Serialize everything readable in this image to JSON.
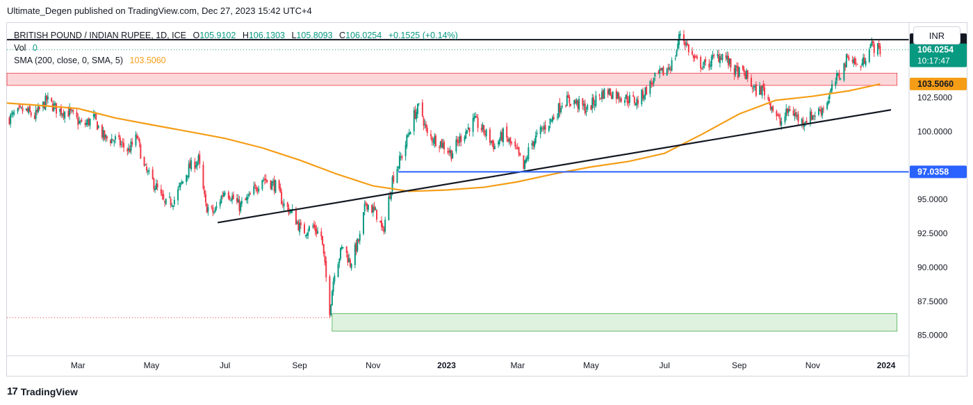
{
  "header": {
    "published": "Ultimate_Degen published on TradingView.com, Dec 27, 2023 15:42 UTC+4"
  },
  "legend": {
    "symbol": "BRITISH POUND / INDIAN RUPEE, 1D, ICE",
    "o_label": "O",
    "o": "105.9102",
    "h_label": "H",
    "h": "106.1303",
    "l_label": "L",
    "l": "105.8093",
    "c_label": "C",
    "c": "106.0254",
    "change": "+0.1525 (+0.14%)",
    "vol_label": "Vol",
    "vol": "0",
    "sma_label": "SMA (200, close, 0, SMA, 5)",
    "sma": "103.5060"
  },
  "currency_button": "INR",
  "footer": {
    "brand": "TradingView",
    "logo": "17"
  },
  "colors": {
    "up": "#089981",
    "down": "#f23645",
    "sma": "#f59d16",
    "support": "#2962ff",
    "trend": "#131722",
    "red_zone": "#f23645",
    "green_zone": "#4caf50"
  },
  "chart_data": {
    "type": "candlestick",
    "symbol": "BRITISH POUND / INDIAN RUPEE",
    "interval": "1D",
    "y_range": [
      83.5,
      108.0
    ],
    "y_ticks": [
      "85.0000",
      "87.5000",
      "90.0000",
      "92.5000",
      "95.0000",
      "100.0000",
      "102.5000"
    ],
    "x_ticks": [
      {
        "label": "Mar",
        "date": "2022-03-01"
      },
      {
        "label": "May",
        "date": "2022-05-01"
      },
      {
        "label": "Jul",
        "date": "2022-07-01"
      },
      {
        "label": "Sep",
        "date": "2022-09-01"
      },
      {
        "label": "Nov",
        "date": "2022-11-01"
      },
      {
        "label": "2023",
        "date": "2023-01-01",
        "bold": true
      },
      {
        "label": "Mar",
        "date": "2023-03-01"
      },
      {
        "label": "May",
        "date": "2023-05-01"
      },
      {
        "label": "Jul",
        "date": "2023-07-01"
      },
      {
        "label": "Sep",
        "date": "2023-09-01"
      },
      {
        "label": "Nov",
        "date": "2023-11-01"
      },
      {
        "label": "2024",
        "date": "2024-01-01",
        "bold": true
      }
    ],
    "price_labels": [
      {
        "value": 106.769,
        "text": "106.7690",
        "bg": "#131722"
      },
      {
        "value": 106.0254,
        "text": "106.0254",
        "sub": "10:17:47",
        "bg": "#089981"
      },
      {
        "value": 103.506,
        "text": "103.5060",
        "bg": "#f59d16",
        "color": "#131722"
      },
      {
        "value": 97.0358,
        "text": "97.0358",
        "bg": "#2962ff"
      }
    ],
    "close_path": [
      [
        "2022-01-01",
        100.9
      ],
      [
        "2022-01-15",
        101.6
      ],
      [
        "2022-01-24",
        101.1
      ],
      [
        "2022-02-03",
        102.3
      ],
      [
        "2022-02-12",
        101.6
      ],
      [
        "2022-02-22",
        101.4
      ],
      [
        "2022-03-05",
        100.4
      ],
      [
        "2022-03-14",
        101.0
      ],
      [
        "2022-03-23",
        99.5
      ],
      [
        "2022-04-01",
        99.4
      ],
      [
        "2022-04-12",
        98.6
      ],
      [
        "2022-04-19",
        99.6
      ],
      [
        "2022-04-25",
        97.3
      ],
      [
        "2022-05-05",
        95.9
      ],
      [
        "2022-05-12",
        94.6
      ],
      [
        "2022-05-20",
        95.0
      ],
      [
        "2022-06-01",
        97.3
      ],
      [
        "2022-06-09",
        97.9
      ],
      [
        "2022-06-15",
        94.5
      ],
      [
        "2022-06-22",
        94.0
      ],
      [
        "2022-07-01",
        95.8
      ],
      [
        "2022-07-13",
        94.5
      ],
      [
        "2022-07-21",
        95.1
      ],
      [
        "2022-08-01",
        96.6
      ],
      [
        "2022-08-12",
        96.0
      ],
      [
        "2022-08-19",
        94.6
      ],
      [
        "2022-08-26",
        94.0
      ],
      [
        "2022-09-03",
        92.6
      ],
      [
        "2022-09-12",
        93.0
      ],
      [
        "2022-09-19",
        92.3
      ],
      [
        "2022-09-26",
        86.9
      ],
      [
        "2022-09-30",
        89.8
      ],
      [
        "2022-10-07",
        91.6
      ],
      [
        "2022-10-13",
        90.3
      ],
      [
        "2022-10-21",
        92.2
      ],
      [
        "2022-10-26",
        94.8
      ],
      [
        "2022-11-05",
        93.8
      ],
      [
        "2022-11-09",
        92.5
      ],
      [
        "2022-11-17",
        96.5
      ],
      [
        "2022-11-26",
        98.5
      ],
      [
        "2022-12-05",
        101.2
      ],
      [
        "2022-12-10",
        101.9
      ],
      [
        "2022-12-16",
        99.7
      ],
      [
        "2022-12-27",
        99.2
      ],
      [
        "2023-01-05",
        98.4
      ],
      [
        "2023-01-13",
        99.6
      ],
      [
        "2023-01-24",
        100.8
      ],
      [
        "2023-02-03",
        99.8
      ],
      [
        "2023-02-10",
        98.9
      ],
      [
        "2023-02-17",
        99.8
      ],
      [
        "2023-03-01",
        98.4
      ],
      [
        "2023-03-06",
        97.2
      ],
      [
        "2023-03-11",
        98.9
      ],
      [
        "2023-03-19",
        99.9
      ],
      [
        "2023-04-01",
        101.2
      ],
      [
        "2023-04-08",
        102.3
      ],
      [
        "2023-04-17",
        102.2
      ],
      [
        "2023-04-28",
        101.6
      ],
      [
        "2023-05-07",
        102.6
      ],
      [
        "2023-05-14",
        103.0
      ],
      [
        "2023-05-22",
        102.7
      ],
      [
        "2023-06-01",
        102.4
      ],
      [
        "2023-06-08",
        102.2
      ],
      [
        "2023-06-16",
        103.1
      ],
      [
        "2023-06-25",
        104.1
      ],
      [
        "2023-07-01",
        104.4
      ],
      [
        "2023-07-09",
        105.2
      ],
      [
        "2023-07-14",
        107.3
      ],
      [
        "2023-07-18",
        106.6
      ],
      [
        "2023-07-26",
        105.2
      ],
      [
        "2023-08-04",
        104.8
      ],
      [
        "2023-08-11",
        105.4
      ],
      [
        "2023-08-19",
        105.7
      ],
      [
        "2023-08-27",
        104.5
      ],
      [
        "2023-09-06",
        104.2
      ],
      [
        "2023-09-14",
        103.0
      ],
      [
        "2023-09-21",
        103.1
      ],
      [
        "2023-09-28",
        101.9
      ],
      [
        "2023-10-05",
        100.6
      ],
      [
        "2023-10-13",
        101.7
      ],
      [
        "2023-10-22",
        100.7
      ],
      [
        "2023-10-30",
        101.1
      ],
      [
        "2023-11-05",
        101.4
      ],
      [
        "2023-11-12",
        102.0
      ],
      [
        "2023-11-19",
        103.6
      ],
      [
        "2023-11-25",
        104.4
      ],
      [
        "2023-12-01",
        105.7
      ],
      [
        "2023-12-09",
        104.7
      ],
      [
        "2023-12-13",
        105.1
      ],
      [
        "2023-12-18",
        106.4
      ],
      [
        "2023-12-27",
        106.0
      ]
    ],
    "sma_200": [
      [
        "2022-01-01",
        102.1
      ],
      [
        "2022-02-01",
        101.9
      ],
      [
        "2022-03-01",
        101.7
      ],
      [
        "2022-04-01",
        101.0
      ],
      [
        "2022-05-01",
        100.5
      ],
      [
        "2022-06-01",
        100.0
      ],
      [
        "2022-07-01",
        99.5
      ],
      [
        "2022-08-01",
        98.8
      ],
      [
        "2022-09-01",
        97.9
      ],
      [
        "2022-10-01",
        96.9
      ],
      [
        "2022-11-01",
        96.0
      ],
      [
        "2022-12-01",
        95.6
      ],
      [
        "2023-01-01",
        95.7
      ],
      [
        "2023-02-01",
        95.9
      ],
      [
        "2023-03-01",
        96.3
      ],
      [
        "2023-04-01",
        96.9
      ],
      [
        "2023-05-01",
        97.4
      ],
      [
        "2023-06-01",
        97.8
      ],
      [
        "2023-07-01",
        98.4
      ],
      [
        "2023-08-01",
        99.8
      ],
      [
        "2023-09-01",
        101.3
      ],
      [
        "2023-10-01",
        102.3
      ],
      [
        "2023-11-01",
        102.6
      ],
      [
        "2023-12-01",
        103.0
      ],
      [
        "2023-12-27",
        103.5
      ]
    ],
    "trendline": [
      [
        "2022-06-25",
        93.3
      ],
      [
        "2024-01-05",
        101.6
      ]
    ],
    "horizontal_levels": [
      {
        "name": "resistance",
        "value": 106.769,
        "from": "2022-01-01",
        "to": "2024-01-10"
      },
      {
        "name": "support",
        "value": 97.0358,
        "from": "2022-11-22",
        "to": "2024-01-10"
      }
    ],
    "zones": [
      {
        "name": "red-zone",
        "from_value": 103.4,
        "to_value": 104.3,
        "from": "2022-01-01",
        "to": "2024-01-10"
      },
      {
        "name": "green-zone",
        "from_value": 85.3,
        "to_value": 86.6,
        "from": "2022-09-28",
        "to": "2024-01-10"
      }
    ]
  }
}
